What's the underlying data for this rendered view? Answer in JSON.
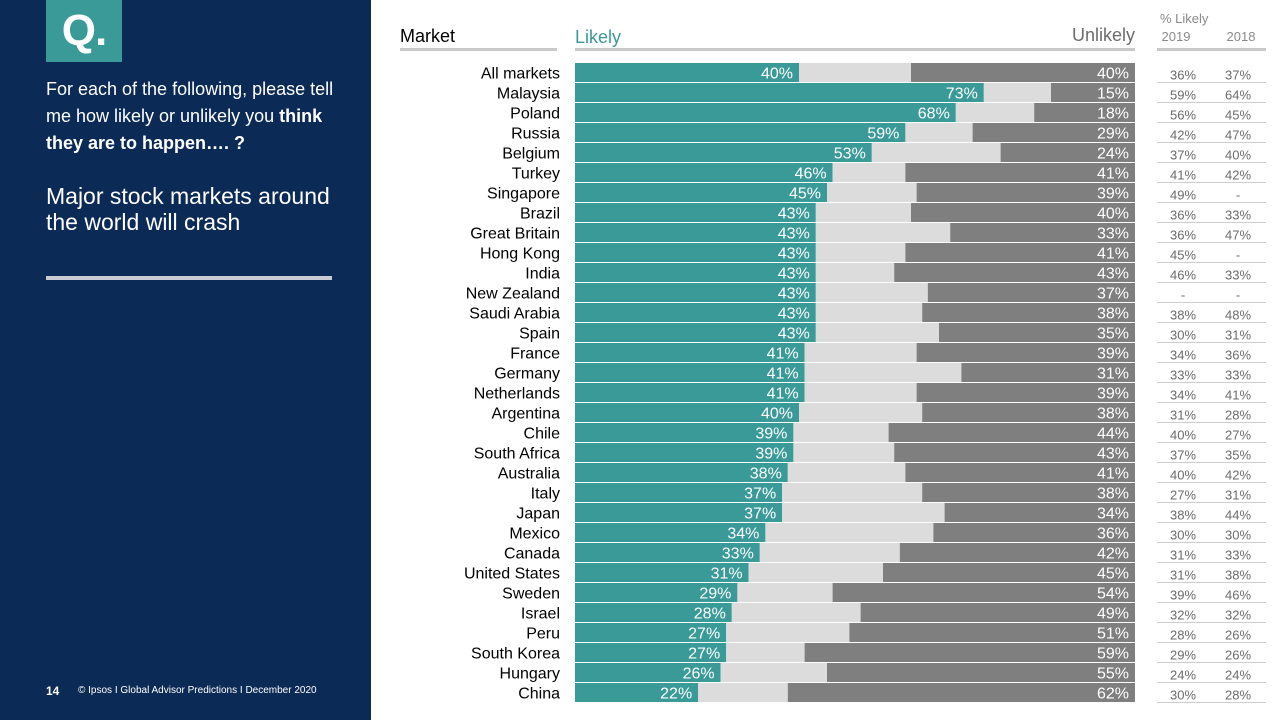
{
  "sidebar": {
    "logo": "Q.",
    "question_part1": "For each of the following, please tell me how likely or unlikely you ",
    "question_bold": "think they are to happen…. ?",
    "statement": "Major stock markets around the world will crash",
    "page_number": "14",
    "footer": "© Ipsos I Global Advisor Predictions I December 2020"
  },
  "colors": {
    "likely": "#3a9a98",
    "neutral": "#dcdcdc",
    "unlikely": "#7f7f7f",
    "sidebar": "#0b2a55"
  },
  "chart_data": {
    "type": "bar",
    "stacked": true,
    "orientation": "horizontal",
    "headers": {
      "category": "Market",
      "likely": "Likely",
      "unlikely": "Unlikely",
      "pct_title": "% Likely",
      "year1": "2019",
      "year2": "2018"
    },
    "categories": [
      "All markets",
      "Malaysia",
      "Poland",
      "Russia",
      "Belgium",
      "Turkey",
      "Singapore",
      "Brazil",
      "Great Britain",
      "Hong Kong",
      "India",
      "New Zealand",
      "Saudi Arabia",
      "Spain",
      "France",
      "Germany",
      "Netherlands",
      "Argentina",
      "Chile",
      "South Africa",
      "Australia",
      "Italy",
      "Japan",
      "Mexico",
      "Canada",
      "United States",
      "Sweden",
      "Israel",
      "Peru",
      "South Korea",
      "Hungary",
      "China"
    ],
    "series": [
      {
        "name": "Likely",
        "values": [
          40,
          73,
          68,
          59,
          53,
          46,
          45,
          43,
          43,
          43,
          43,
          43,
          43,
          43,
          41,
          41,
          41,
          40,
          39,
          39,
          38,
          37,
          37,
          34,
          33,
          31,
          29,
          28,
          27,
          27,
          26,
          22
        ]
      },
      {
        "name": "Unlikely",
        "values": [
          40,
          15,
          18,
          29,
          24,
          41,
          39,
          40,
          33,
          41,
          43,
          37,
          38,
          35,
          39,
          31,
          39,
          38,
          44,
          43,
          41,
          38,
          34,
          36,
          42,
          45,
          54,
          49,
          51,
          59,
          55,
          62
        ]
      }
    ],
    "likely_2019": [
      "36%",
      "59%",
      "56%",
      "42%",
      "37%",
      "41%",
      "49%",
      "36%",
      "36%",
      "45%",
      "46%",
      "-",
      "38%",
      "30%",
      "34%",
      "33%",
      "34%",
      "31%",
      "40%",
      "37%",
      "40%",
      "27%",
      "38%",
      "30%",
      "31%",
      "31%",
      "39%",
      "32%",
      "28%",
      "29%",
      "24%",
      "30%"
    ],
    "likely_2018": [
      "37%",
      "64%",
      "45%",
      "47%",
      "40%",
      "42%",
      "-",
      "33%",
      "47%",
      "-",
      "33%",
      "-",
      "48%",
      "31%",
      "36%",
      "33%",
      "41%",
      "28%",
      "27%",
      "35%",
      "42%",
      "31%",
      "44%",
      "30%",
      "33%",
      "38%",
      "46%",
      "32%",
      "26%",
      "26%",
      "24%",
      "28%"
    ],
    "xlim": [
      0,
      100
    ]
  }
}
